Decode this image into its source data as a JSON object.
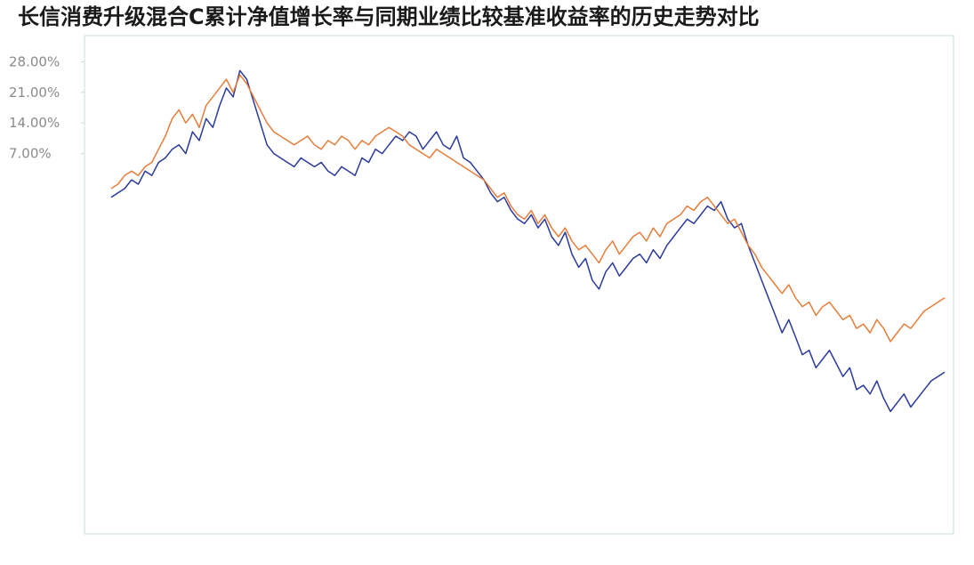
{
  "chart_data": {
    "type": "line",
    "title": "长信消费升级混合C累计净值增长率与同期业绩比较基准收益率的历史走势对比",
    "y_tick_labels": [
      "28.00%",
      "21.00%",
      "14.00%",
      "7.00%"
    ],
    "y_ticks": [
      28,
      21,
      14,
      7
    ],
    "ylim": [
      -80,
      34
    ],
    "grid": false,
    "legend": "none",
    "series": [
      {
        "color": "#2a3a9c",
        "values": [
          -3,
          -2,
          -1,
          1,
          0,
          3,
          2,
          5,
          6,
          8,
          9,
          7,
          12,
          10,
          15,
          13,
          18,
          22,
          20,
          26,
          24,
          19,
          14,
          9,
          7,
          6,
          5,
          4,
          6,
          5,
          4,
          5,
          3,
          2,
          4,
          3,
          2,
          6,
          5,
          8,
          7,
          9,
          11,
          10,
          12,
          11,
          8,
          10,
          12,
          9,
          8,
          11,
          6,
          5,
          3,
          1,
          -2,
          -4,
          -3,
          -6,
          -8,
          -9,
          -7,
          -10,
          -8,
          -12,
          -14,
          -11,
          -16,
          -19,
          -17,
          -22,
          -24,
          -20,
          -18,
          -21,
          -19,
          -17,
          -16,
          -18,
          -15,
          -17,
          -14,
          -12,
          -10,
          -8,
          -9,
          -7,
          -5,
          -6,
          -4,
          -8,
          -10,
          -9,
          -14,
          -18,
          -22,
          -26,
          -30,
          -34,
          -31,
          -35,
          -39,
          -38,
          -42,
          -40,
          -38,
          -41,
          -44,
          -42,
          -47,
          -46,
          -48,
          -45,
          -49,
          -52,
          -50,
          -48,
          -51,
          -49,
          -47,
          -45,
          -44,
          -43
        ]
      },
      {
        "color": "#e67d3a",
        "values": [
          -1,
          0,
          2,
          3,
          2,
          4,
          5,
          8,
          11,
          15,
          17,
          14,
          16,
          13,
          18,
          20,
          22,
          24,
          21,
          25,
          23,
          20,
          17,
          14,
          12,
          11,
          10,
          9,
          10,
          11,
          9,
          8,
          10,
          9,
          11,
          10,
          8,
          10,
          9,
          11,
          12,
          13,
          12,
          11,
          9,
          8,
          7,
          6,
          8,
          7,
          6,
          5,
          4,
          3,
          2,
          1,
          -1,
          -3,
          -2,
          -5,
          -7,
          -8,
          -6,
          -9,
          -7,
          -10,
          -12,
          -10,
          -13,
          -15,
          -14,
          -16,
          -18,
          -15,
          -13,
          -16,
          -14,
          -12,
          -11,
          -13,
          -10,
          -12,
          -9,
          -8,
          -7,
          -5,
          -6,
          -4,
          -3,
          -5,
          -7,
          -9,
          -8,
          -11,
          -14,
          -16,
          -19,
          -21,
          -23,
          -25,
          -23,
          -26,
          -28,
          -27,
          -30,
          -28,
          -27,
          -29,
          -31,
          -30,
          -33,
          -32,
          -34,
          -31,
          -33,
          -36,
          -34,
          -32,
          -33,
          -31,
          -29,
          -28,
          -27,
          -26
        ]
      }
    ]
  },
  "colors": {
    "axis": "#c8dcdc",
    "background": "#ffffff"
  }
}
